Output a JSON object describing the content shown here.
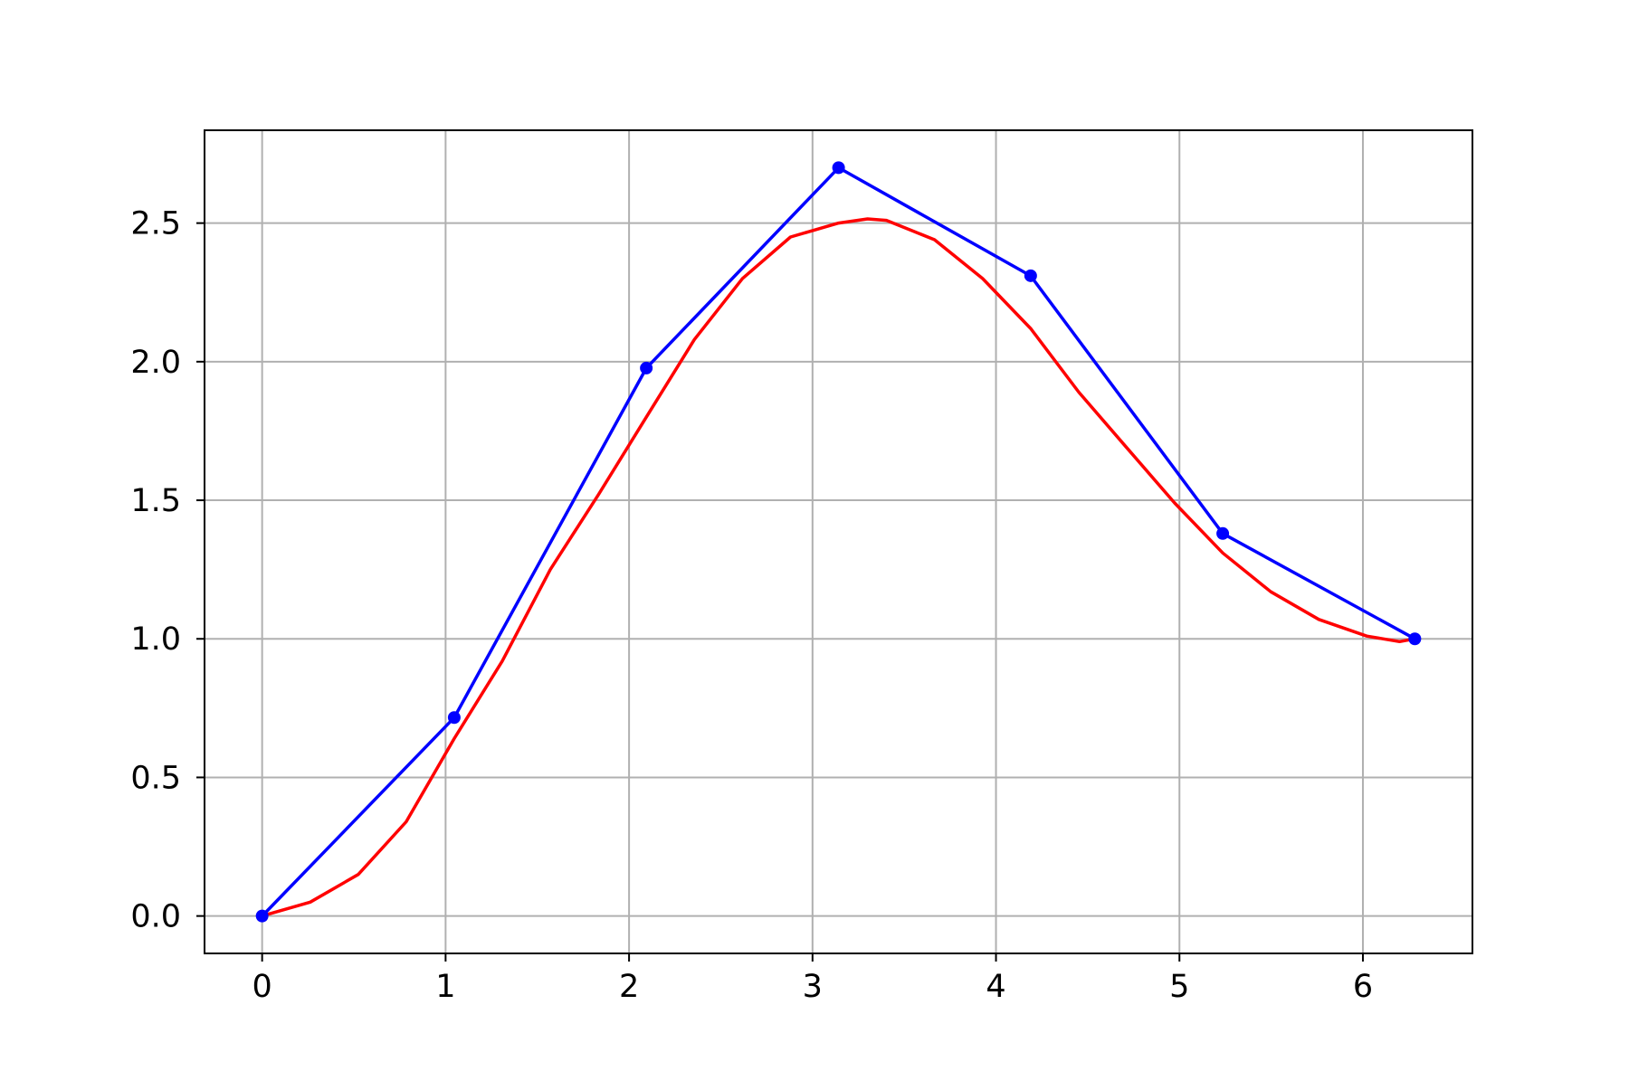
{
  "chart_data": {
    "type": "line",
    "title": "",
    "xlabel": "",
    "ylabel": "",
    "xlim": [
      -0.314,
      6.597
    ],
    "ylim": [
      -0.135,
      2.835
    ],
    "xticks": [
      0,
      1,
      2,
      3,
      4,
      5,
      6
    ],
    "yticks": [
      0.0,
      0.5,
      1.0,
      1.5,
      2.0,
      2.5
    ],
    "xtick_labels": [
      "0",
      "1",
      "2",
      "3",
      "4",
      "5",
      "6"
    ],
    "ytick_labels": [
      "0.0",
      "0.5",
      "1.0",
      "1.5",
      "2.0",
      "2.5"
    ],
    "grid": true,
    "legend": "none",
    "series": [
      {
        "style": "line-with-markers",
        "color": "#0000ff",
        "x": [
          0,
          1.047,
          2.094,
          3.142,
          4.189,
          5.236,
          6.283
        ],
        "y": [
          0,
          0.716,
          1.977,
          2.7,
          2.31,
          1.38,
          1.0
        ]
      },
      {
        "style": "smooth-line",
        "color": "#ff0000",
        "x": [
          0,
          0.262,
          0.524,
          0.785,
          1.047,
          1.309,
          1.571,
          1.833,
          2.094,
          2.356,
          2.618,
          2.88,
          3.142,
          3.3,
          3.403,
          3.665,
          3.927,
          4.189,
          4.451,
          4.712,
          4.974,
          5.236,
          5.498,
          5.76,
          6.021,
          6.2,
          6.283
        ],
        "y": [
          0,
          0.05,
          0.15,
          0.34,
          0.64,
          0.92,
          1.25,
          1.52,
          1.8,
          2.08,
          2.3,
          2.45,
          2.5,
          2.515,
          2.51,
          2.44,
          2.3,
          2.12,
          1.89,
          1.69,
          1.49,
          1.31,
          1.17,
          1.07,
          1.01,
          0.99,
          1.0
        ]
      }
    ]
  }
}
